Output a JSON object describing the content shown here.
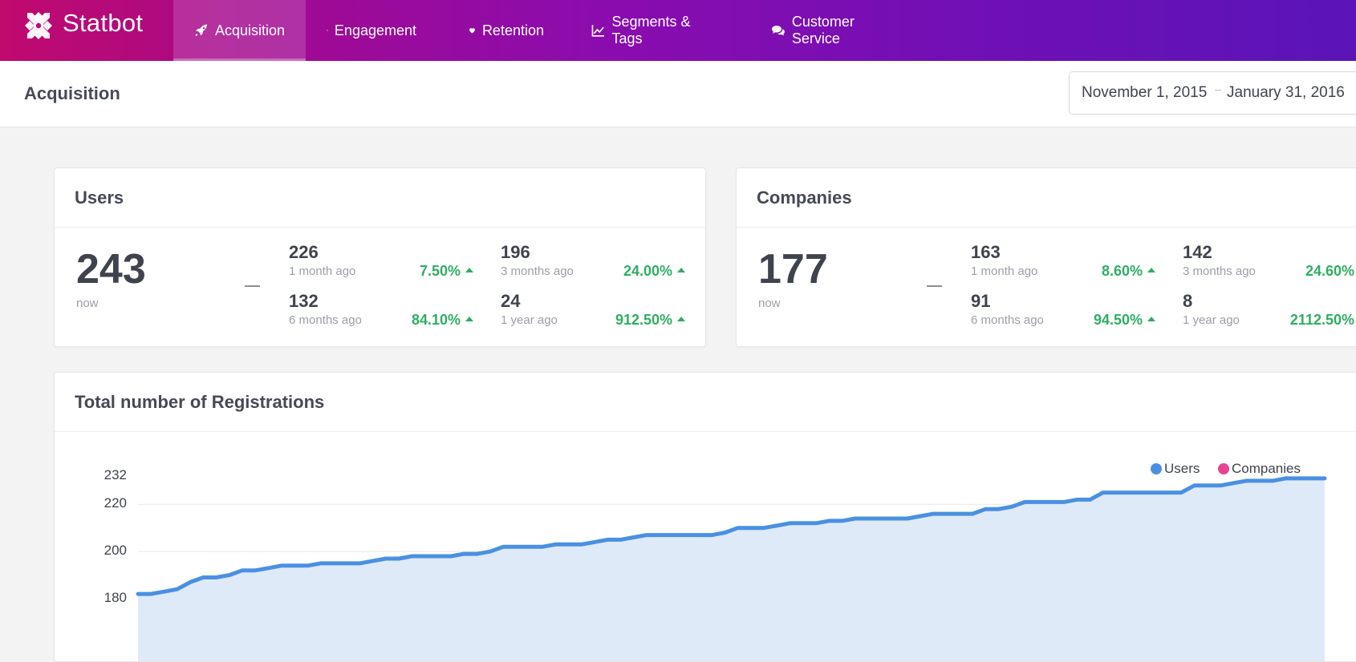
{
  "brand": {
    "name": "Statbot"
  },
  "nav": [
    {
      "label": "Acquisition",
      "icon": "rocket-icon",
      "active": true
    },
    {
      "label": "Engagement",
      "icon": "star-icon"
    },
    {
      "label": "Retention",
      "icon": "heart-icon"
    },
    {
      "label": "Segments & Tags",
      "icon": "line-chart-icon"
    },
    {
      "label": "Customer Service",
      "icon": "chat-bubbles-icon"
    }
  ],
  "header": {
    "title": "Acquisition",
    "date_start": "November 1, 2015",
    "date_sep": "–",
    "date_end": "January 31, 2016"
  },
  "users": {
    "title": "Users",
    "now": "243",
    "now_label": "now",
    "stats": [
      {
        "value": "226",
        "label": "1 month ago",
        "pct": "7.50%"
      },
      {
        "value": "196",
        "label": "3 months ago",
        "pct": "24.00%"
      },
      {
        "value": "132",
        "label": "6 months ago",
        "pct": "84.10%"
      },
      {
        "value": "24",
        "label": "1 year ago",
        "pct": "912.50%"
      }
    ]
  },
  "companies": {
    "title": "Companies",
    "now": "177",
    "now_label": "now",
    "stats": [
      {
        "value": "163",
        "label": "1 month ago",
        "pct": "8.60%"
      },
      {
        "value": "142",
        "label": "3 months ago",
        "pct": "24.60%"
      },
      {
        "value": "91",
        "label": "6 months ago",
        "pct": "94.50%"
      },
      {
        "value": "8",
        "label": "1 year ago",
        "pct": "2112.50%"
      }
    ]
  },
  "registrations": {
    "title": "Total number of Registrations",
    "legend": [
      {
        "name": "Users",
        "color": "#4a90e2"
      },
      {
        "name": "Companies",
        "color": "#e84393"
      }
    ]
  },
  "chart_data": {
    "type": "area",
    "title": "Total number of Registrations",
    "y_ticks": [
      180,
      200,
      220,
      232
    ],
    "ylim": [
      170,
      232
    ],
    "grid": true,
    "legend_position": "top-right",
    "series": [
      {
        "name": "Users",
        "color": "#4a90e2",
        "values": [
          182,
          182,
          183,
          184,
          187,
          189,
          189,
          190,
          192,
          192,
          193,
          194,
          194,
          194,
          195,
          195,
          195,
          195,
          196,
          197,
          197,
          198,
          198,
          198,
          198,
          199,
          199,
          200,
          202,
          202,
          202,
          202,
          203,
          203,
          203,
          204,
          205,
          205,
          206,
          207,
          207,
          207,
          207,
          207,
          207,
          208,
          210,
          210,
          210,
          211,
          212,
          212,
          212,
          213,
          213,
          214,
          214,
          214,
          214,
          214,
          215,
          216,
          216,
          216,
          216,
          218,
          218,
          219,
          221,
          221,
          221,
          221,
          222,
          222,
          225,
          225,
          225,
          225,
          225,
          225,
          225,
          228,
          228,
          228,
          229,
          230,
          230,
          230,
          231,
          231,
          231,
          231
        ]
      },
      {
        "name": "Companies",
        "color": "#e84393",
        "values": []
      }
    ]
  }
}
